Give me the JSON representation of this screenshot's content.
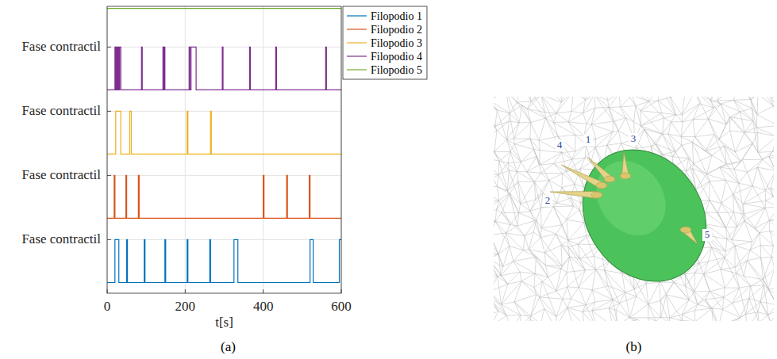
{
  "chart_data": {
    "type": "line",
    "caption": "(a)",
    "xlabel": "t[s]",
    "xlim": [
      0,
      600
    ],
    "xticks": [
      0,
      200,
      400,
      600
    ],
    "ylim": [
      -0.25,
      6.45
    ],
    "yticks": [
      {
        "value": 1,
        "label": "Fase contractil"
      },
      {
        "value": 2.5,
        "label": "Fase contractil"
      },
      {
        "value": 4,
        "label": "Fase contractil"
      },
      {
        "value": 5.5,
        "label": "Fase contractil"
      }
    ],
    "grid": true,
    "legend": "upper right",
    "series": [
      {
        "name": "Filopodio 1",
        "color": "#0072bd",
        "x": [
          0,
          20,
          20,
          30,
          30,
          50,
          50,
          52,
          52,
          95,
          95,
          97,
          97,
          148,
          148,
          150,
          150,
          205,
          205,
          207,
          207,
          263,
          263,
          265,
          265,
          325,
          325,
          335,
          335,
          520,
          520,
          528,
          528,
          595,
          595,
          600
        ],
        "values": [
          0,
          0,
          1,
          1,
          0,
          0,
          1,
          1,
          0,
          0,
          1,
          1,
          0,
          0,
          1,
          1,
          0,
          0,
          1,
          1,
          0,
          0,
          1,
          1,
          0,
          0,
          1,
          1,
          0,
          0,
          1,
          1,
          0,
          0,
          1,
          1
        ]
      },
      {
        "name": "Filopodio 2",
        "color": "#d95319",
        "x": [
          0,
          18,
          18,
          20,
          20,
          48,
          48,
          50,
          50,
          80,
          80,
          82,
          82,
          400,
          400,
          402,
          402,
          460,
          460,
          462,
          462,
          518,
          518,
          520,
          520,
          600
        ],
        "values": [
          1.5,
          1.5,
          2.5,
          2.5,
          1.5,
          1.5,
          2.5,
          2.5,
          1.5,
          1.5,
          2.5,
          2.5,
          1.5,
          1.5,
          2.5,
          2.5,
          1.5,
          1.5,
          2.5,
          2.5,
          1.5,
          1.5,
          2.5,
          2.5,
          1.5,
          1.5
        ]
      },
      {
        "name": "Filopodio 3",
        "color": "#edb120",
        "x": [
          0,
          22,
          22,
          35,
          35,
          58,
          58,
          62,
          62,
          205,
          205,
          207,
          207,
          265,
          265,
          267,
          267,
          600
        ],
        "values": [
          3,
          3,
          4,
          4,
          3,
          3,
          4,
          4,
          3,
          3,
          4,
          4,
          3,
          3,
          4,
          4,
          3,
          3
        ]
      },
      {
        "name": "Filopodio 4",
        "color": "#7e2f8e",
        "x": [
          0,
          20,
          20,
          22,
          22,
          24,
          24,
          26,
          26,
          28,
          28,
          30,
          30,
          32,
          32,
          35,
          35,
          88,
          88,
          90,
          90,
          143,
          143,
          145,
          145,
          146,
          146,
          148,
          148,
          210,
          210,
          212,
          212,
          215,
          215,
          228,
          228,
          295,
          295,
          297,
          297,
          365,
          365,
          367,
          367,
          432,
          432,
          434,
          434,
          560,
          560,
          562,
          562,
          600
        ],
        "values": [
          4.5,
          4.5,
          5.5,
          5.5,
          4.5,
          4.5,
          5.5,
          5.5,
          4.5,
          4.5,
          5.5,
          5.5,
          4.5,
          4.5,
          5.5,
          5.5,
          4.5,
          4.5,
          5.5,
          5.5,
          4.5,
          4.5,
          5.5,
          5.5,
          4.5,
          4.5,
          5.5,
          5.5,
          4.5,
          4.5,
          5.5,
          5.5,
          4.5,
          4.5,
          5.5,
          5.5,
          4.5,
          4.5,
          5.5,
          5.5,
          4.5,
          4.5,
          5.5,
          5.5,
          4.5,
          4.5,
          5.5,
          5.5,
          4.5,
          4.5,
          5.5,
          5.5,
          4.5,
          4.5
        ]
      },
      {
        "name": "Filopodio 5",
        "color": "#77ac30",
        "x": [
          0,
          600
        ],
        "values": [
          6.4,
          6.4
        ]
      }
    ]
  },
  "panel_b": {
    "caption": "(b)",
    "labels": [
      "1",
      "2",
      "3",
      "4",
      "5"
    ]
  }
}
